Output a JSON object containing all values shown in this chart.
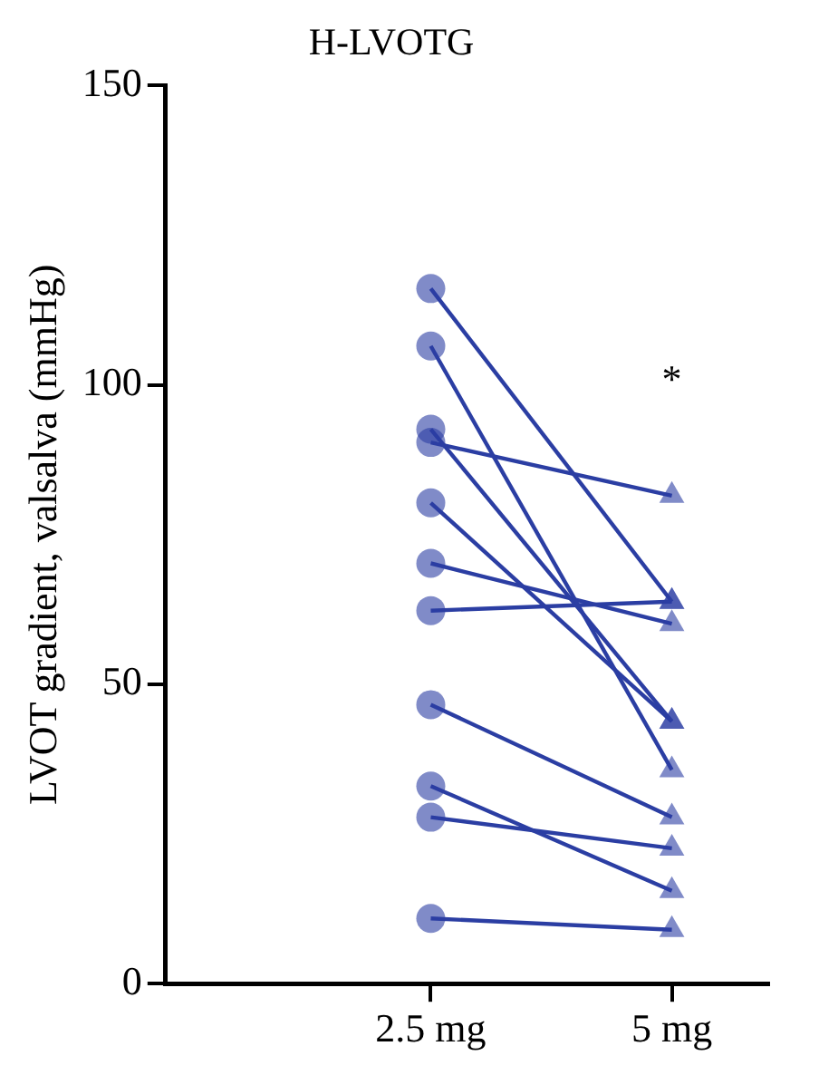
{
  "chart_data": {
    "type": "line",
    "title": "H-LVOTG",
    "ylabel": "LVOT gradient, valsalva (mmHg)",
    "categories": [
      "2.5 mg",
      "5 mg"
    ],
    "series": [
      {
        "color": "#2b3ea3",
        "values": [
          116.1,
          63.8
        ]
      },
      {
        "color": "#2b3ea3",
        "values": [
          106.5,
          35.7
        ]
      },
      {
        "color": "#2b3ea3",
        "values": [
          92.6,
          43.8
        ]
      },
      {
        "color": "#2b3ea3",
        "values": [
          90.4,
          81.5
        ]
      },
      {
        "color": "#2b3ea3",
        "values": [
          80.3,
          43.8
        ]
      },
      {
        "color": "#2b3ea3",
        "values": [
          70.2,
          60.1
        ]
      },
      {
        "color": "#2b3ea3",
        "values": [
          62.3,
          63.8
        ]
      },
      {
        "color": "#2b3ea3",
        "values": [
          46.6,
          27.8
        ]
      },
      {
        "color": "#2b3ea3",
        "values": [
          33,
          15.5
        ]
      },
      {
        "color": "#2b3ea3",
        "values": [
          27.8,
          22.6
        ]
      },
      {
        "color": "#2b3ea3",
        "values": [
          10.9,
          9
        ]
      }
    ],
    "marker": [
      "circle",
      "triangle"
    ],
    "ylim": [
      0,
      150
    ],
    "yticks": [
      0,
      50,
      100,
      150
    ],
    "annotations": [
      "*"
    ]
  }
}
